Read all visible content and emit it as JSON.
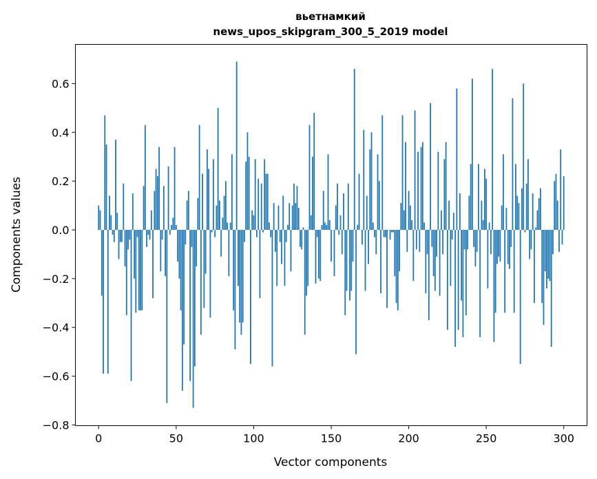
{
  "chart_data": {
    "type": "bar",
    "title": [
      "вьетнамкий",
      "news_upos_skipgram_300_5_2019 model"
    ],
    "xlabel": "Vector components",
    "ylabel": "Components values",
    "xlim": [
      -15,
      315
    ],
    "ylim": [
      -0.8,
      0.75
    ],
    "x_ticks": [
      0,
      50,
      100,
      150,
      200,
      250,
      300
    ],
    "x_tick_labels": [
      "0",
      "50",
      "100",
      "150",
      "200",
      "250",
      "300"
    ],
    "y_ticks": [
      -0.8,
      -0.6,
      -0.4,
      -0.2,
      0.0,
      0.2,
      0.4,
      0.6
    ],
    "y_tick_labels": [
      "−0.8",
      "−0.6",
      "−0.4",
      "−0.2",
      "0.0",
      "0.2",
      "0.4",
      "0.6"
    ],
    "grid": false,
    "bar_color": "#1f77b4",
    "values": [
      0.1,
      0.08,
      -0.27,
      -0.59,
      0.47,
      0.35,
      -0.59,
      0.14,
      0.06,
      -0.02,
      -0.05,
      0.37,
      0.07,
      -0.12,
      -0.05,
      -0.05,
      0.19,
      -0.15,
      -0.35,
      -0.08,
      -0.04,
      -0.62,
      0.15,
      -0.2,
      -0.34,
      -0.03,
      -0.33,
      -0.33,
      -0.33,
      0.18,
      0.43,
      -0.07,
      -0.02,
      -0.04,
      0.08,
      -0.28,
      0.16,
      0.25,
      0.22,
      0.34,
      -0.17,
      -0.04,
      0.18,
      -0.19,
      -0.71,
      0.26,
      -0.02,
      0.02,
      0.05,
      0.34,
      0.02,
      -0.13,
      -0.2,
      -0.33,
      -0.66,
      -0.47,
      -0.06,
      0.12,
      0.16,
      -0.62,
      -0.07,
      -0.73,
      -0.56,
      -0.15,
      0.13,
      0.43,
      -0.43,
      0.23,
      -0.32,
      -0.18,
      0.33,
      0.25,
      -0.36,
      -0.01,
      0.29,
      -0.03,
      0.1,
      0.5,
      0.12,
      -0.11,
      0.05,
      0.14,
      0.2,
      0.03,
      -0.19,
      0.03,
      0.31,
      -0.33,
      -0.49,
      0.69,
      -0.23,
      -0.38,
      -0.43,
      -0.38,
      -0.05,
      0.28,
      0.4,
      0.3,
      -0.55,
      0.08,
      0.06,
      0.29,
      -0.03,
      0.21,
      -0.28,
      0.19,
      -0.01,
      0.29,
      0.23,
      0.23,
      0.03,
      -0.03,
      -0.56,
      0.11,
      -0.09,
      -0.23,
      0.1,
      -0.05,
      -0.14,
      0.14,
      -0.23,
      -0.05,
      0.02,
      0.11,
      -0.17,
      0.1,
      0.19,
      0.11,
      0.18,
      0.09,
      -0.07,
      -0.08,
      0.01,
      -0.43,
      -0.27,
      -0.23,
      0.43,
      0.06,
      0.3,
      0.48,
      -0.22,
      -0.03,
      -0.2,
      -0.21,
      0.02,
      0.16,
      0.03,
      0.02,
      0.31,
      0.04,
      -0.13,
      0.0,
      -0.19,
      0.1,
      0.19,
      -0.02,
      0.06,
      -0.1,
      0.15,
      -0.35,
      -0.25,
      0.19,
      -0.29,
      -0.25,
      -0.13,
      0.66,
      -0.51,
      0.02,
      0.23,
      0.0,
      -0.06,
      0.41,
      -0.25,
      0.14,
      -0.14,
      0.33,
      0.4,
      0.03,
      -0.03,
      -0.1,
      0.31,
      0.2,
      -0.26,
      0.47,
      -0.03,
      -0.03,
      -0.32,
      0.0,
      -0.04,
      -0.01,
      -0.01,
      -0.19,
      -0.3,
      -0.33,
      -0.17,
      0.11,
      0.47,
      0.08,
      0.36,
      -0.09,
      0.16,
      0.1,
      0.04,
      -0.21,
      0.49,
      -0.08,
      0.32,
      -0.09,
      0.34,
      0.36,
      0.03,
      -0.26,
      -0.1,
      -0.37,
      0.52,
      -0.07,
      -0.19,
      -0.25,
      -0.11,
      0.32,
      -0.27,
      0.08,
      -0.1,
      0.29,
      0.36,
      -0.41,
      0.12,
      -0.23,
      -0.04,
      0.07,
      -0.48,
      0.58,
      -0.41,
      0.15,
      -0.29,
      -0.44,
      -0.08,
      -0.35,
      -0.08,
      0.14,
      0.27,
      0.62,
      -0.07,
      -0.15,
      -0.09,
      0.27,
      -0.44,
      0.12,
      0.04,
      0.25,
      0.21,
      -0.24,
      0.03,
      -0.1,
      0.66,
      -0.46,
      -0.34,
      -0.14,
      -0.11,
      -0.13,
      0.1,
      0.31,
      -0.34,
      0.09,
      -0.14,
      -0.16,
      -0.07,
      0.54,
      -0.34,
      0.27,
      0.14,
      0.11,
      -0.55,
      0.17,
      0.6,
      -0.01,
      0.19,
      0.29,
      -0.12,
      -0.08,
      0.15,
      -0.3,
      0.01,
      0.08,
      0.13,
      0.17,
      -0.3,
      -0.39,
      -0.17,
      -0.24,
      -0.2,
      -0.21,
      -0.48,
      -0.1,
      0.2,
      0.23,
      0.12,
      -0.09,
      0.33,
      -0.06,
      0.22
    ]
  }
}
